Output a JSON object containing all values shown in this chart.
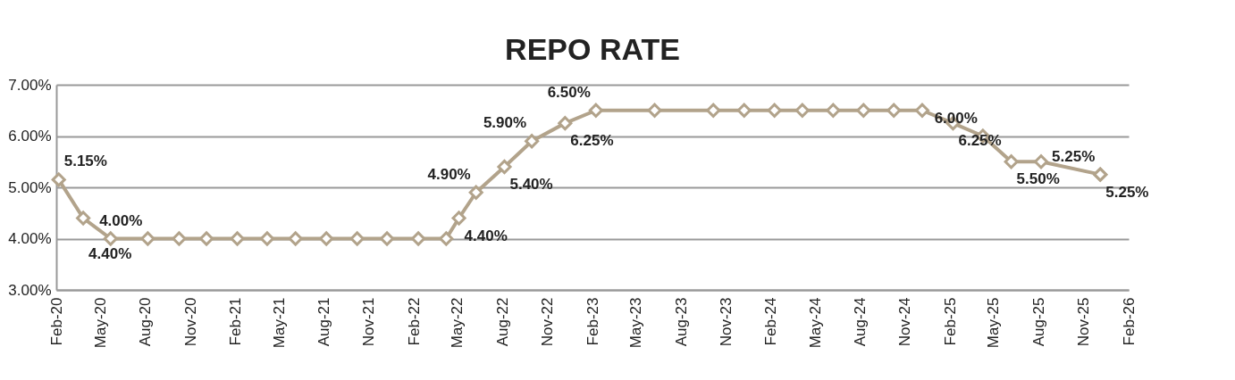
{
  "chart_data": {
    "type": "line",
    "title": "REPO RATE",
    "x": [
      "2020-02-06",
      "2020-03-27",
      "2020-05-22",
      "2020-08-06",
      "2020-10-09",
      "2020-12-04",
      "2021-02-05",
      "2021-04-07",
      "2021-06-04",
      "2021-08-06",
      "2021-10-08",
      "2021-12-08",
      "2022-02-10",
      "2022-04-08",
      "2022-05-04",
      "2022-06-08",
      "2022-08-05",
      "2022-09-30",
      "2022-12-07",
      "2023-02-08",
      "2023-06-08",
      "2023-10-06",
      "2023-12-08",
      "2024-02-08",
      "2024-04-05",
      "2024-06-07",
      "2024-08-08",
      "2024-10-09",
      "2024-12-06",
      "2025-02-07",
      "2025-04-09",
      "2025-06-06",
      "2025-08-06",
      "2025-12-05",
      "2025-12-05"
    ],
    "series": [
      {
        "color": "#b2a38b",
        "values": [
          5.15,
          4.4,
          4.0,
          4.0,
          4.0,
          4.0,
          4.0,
          4.0,
          4.0,
          4.0,
          4.0,
          4.0,
          4.0,
          4.0,
          4.4,
          4.9,
          5.4,
          5.9,
          6.25,
          6.5,
          6.5,
          6.5,
          6.5,
          6.5,
          6.5,
          6.5,
          6.5,
          6.5,
          6.5,
          6.25,
          6.0,
          5.5,
          5.5,
          5.25,
          5.25
        ],
        "value_labels": [
          "5.15%",
          "4.40%",
          null,
          "4.00%",
          null,
          null,
          null,
          null,
          null,
          null,
          null,
          null,
          null,
          null,
          "4.40%",
          "4.90%",
          "5.40%",
          "5.90%",
          "6.25%",
          "6.50%",
          null,
          null,
          null,
          null,
          null,
          null,
          null,
          null,
          null,
          "6.25%",
          "6.00%",
          "5.50%",
          null,
          "5.25%",
          "5.25%"
        ]
      }
    ],
    "xlim": [
      "2020-02-01",
      "2026-02-01"
    ],
    "xticks": [
      {
        "value": "2020-02-01",
        "label": "Feb-20"
      },
      {
        "value": "2020-05-01",
        "label": "May-20"
      },
      {
        "value": "2020-08-01",
        "label": "Aug-20"
      },
      {
        "value": "2020-11-01",
        "label": "Nov-20"
      },
      {
        "value": "2021-02-01",
        "label": "Feb-21"
      },
      {
        "value": "2021-05-01",
        "label": "May-21"
      },
      {
        "value": "2021-08-01",
        "label": "Aug-21"
      },
      {
        "value": "2021-11-01",
        "label": "Nov-21"
      },
      {
        "value": "2022-02-01",
        "label": "Feb-22"
      },
      {
        "value": "2022-05-01",
        "label": "May-22"
      },
      {
        "value": "2022-08-01",
        "label": "Aug-22"
      },
      {
        "value": "2022-11-01",
        "label": "Nov-22"
      },
      {
        "value": "2023-02-01",
        "label": "Feb-23"
      },
      {
        "value": "2023-05-01",
        "label": "May-23"
      },
      {
        "value": "2023-08-01",
        "label": "Aug-23"
      },
      {
        "value": "2023-11-01",
        "label": "Nov-23"
      },
      {
        "value": "2024-02-01",
        "label": "Feb-24"
      },
      {
        "value": "2024-05-01",
        "label": "May-24"
      },
      {
        "value": "2024-08-01",
        "label": "Aug-24"
      },
      {
        "value": "2024-11-01",
        "label": "Nov-24"
      },
      {
        "value": "2025-02-01",
        "label": "Feb-25"
      },
      {
        "value": "2025-05-01",
        "label": "May-25"
      },
      {
        "value": "2025-08-01",
        "label": "Aug-25"
      },
      {
        "value": "2025-11-01",
        "label": "Nov-25"
      },
      {
        "value": "2026-02-01",
        "label": "Feb-26"
      }
    ],
    "ylim": [
      3,
      7
    ],
    "yticks": [
      {
        "value": 3,
        "label": "3.00%"
      },
      {
        "value": 4,
        "label": "4.00%"
      },
      {
        "value": 5,
        "label": "5.00%"
      },
      {
        "value": 6,
        "label": "6.00%"
      },
      {
        "value": 7,
        "label": "7.00%"
      }
    ],
    "grid": "y",
    "marker": "diamond",
    "line_style": "solid"
  }
}
